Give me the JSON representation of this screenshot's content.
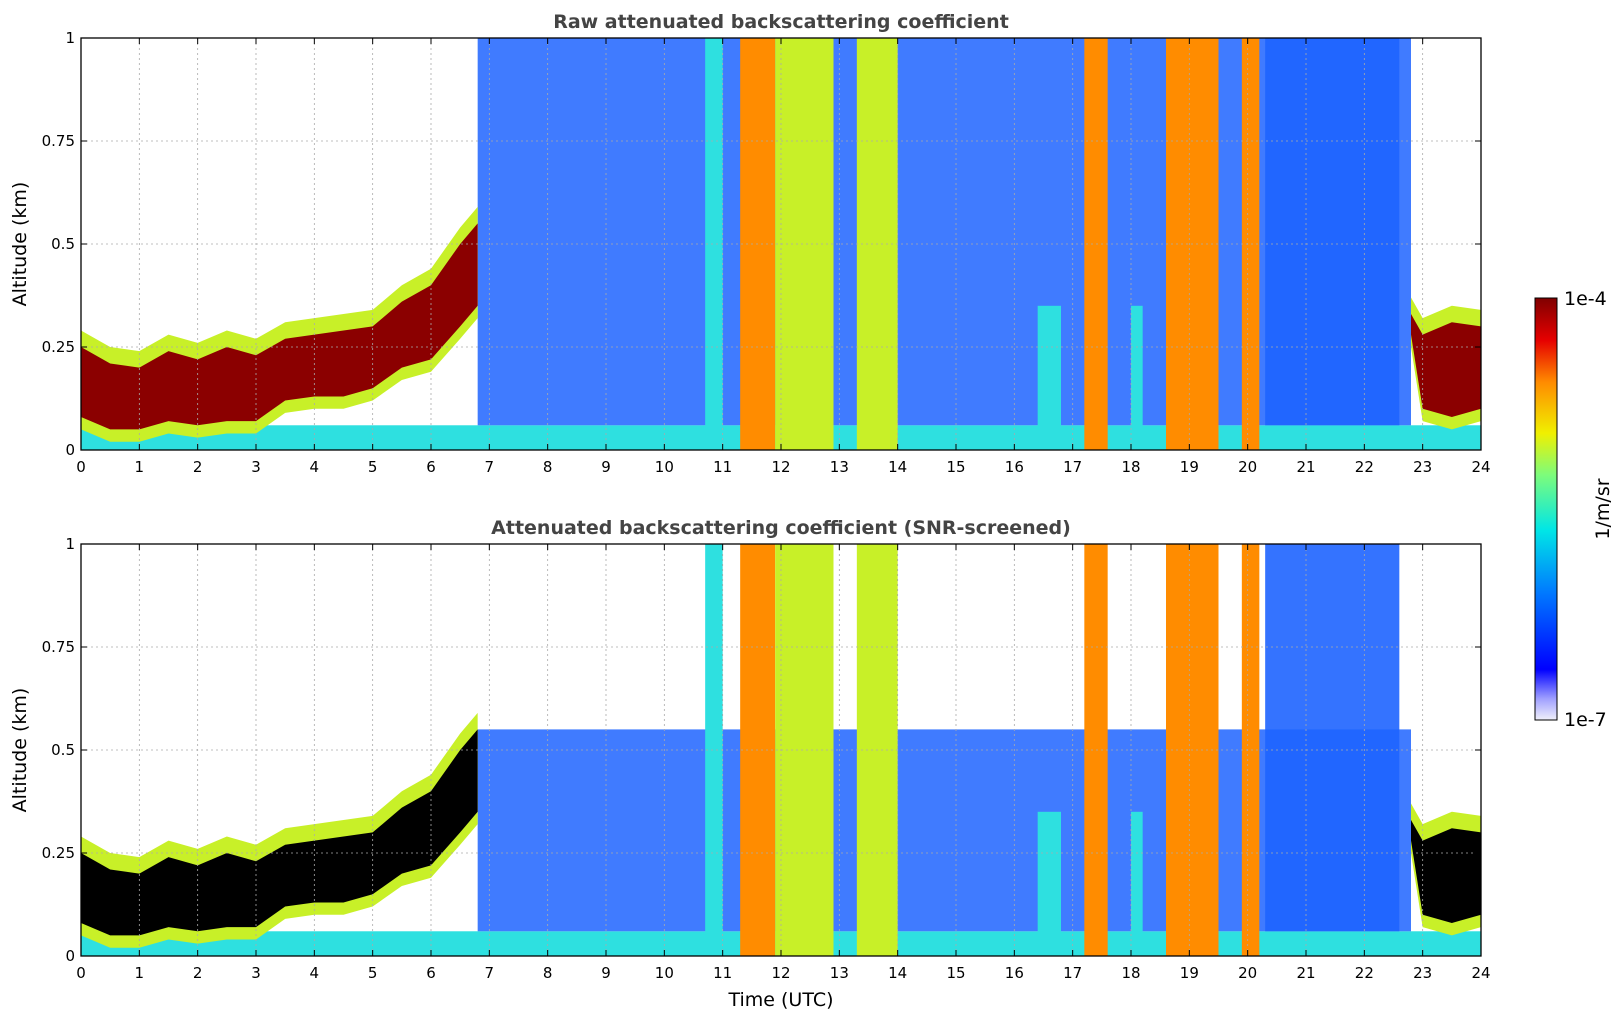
{
  "chart_data": [
    {
      "type": "heatmap",
      "title": "Raw attenuated backscattering coefficient",
      "xlabel": "",
      "ylabel": "Altitude (km)",
      "xlim": [
        0,
        24
      ],
      "ylim": [
        0,
        1
      ],
      "x_ticks": [
        "0",
        "1",
        "2",
        "3",
        "4",
        "5",
        "6",
        "7",
        "8",
        "9",
        "10",
        "11",
        "12",
        "13",
        "14",
        "15",
        "16",
        "17",
        "18",
        "19",
        "20",
        "21",
        "22",
        "23",
        "24"
      ],
      "y_ticks": [
        "0",
        "0.25",
        "0.5",
        "0.75",
        "1"
      ],
      "grid": true,
      "colorbar": {
        "label": "1/m/sr",
        "min_label": "1e-7",
        "max_label": "1e-4",
        "scale": "log"
      },
      "layer": {
        "description_x_hours": [
          0,
          0.5,
          1,
          1.5,
          2,
          2.5,
          3,
          3.5,
          4,
          4.5,
          5,
          5.5,
          6,
          6.5,
          6.8,
          22.8,
          23,
          23.5,
          24
        ],
        "top_km": [
          0.25,
          0.21,
          0.2,
          0.24,
          0.22,
          0.25,
          0.23,
          0.27,
          0.28,
          0.29,
          0.3,
          0.36,
          0.4,
          0.5,
          0.55,
          0.33,
          0.28,
          0.31,
          0.3
        ],
        "bottom_km": [
          0.08,
          0.05,
          0.05,
          0.07,
          0.06,
          0.07,
          0.07,
          0.12,
          0.13,
          0.13,
          0.15,
          0.2,
          0.22,
          0.3,
          0.35,
          0.28,
          0.1,
          0.08,
          0.1
        ],
        "color_level": "max"
      },
      "bands": [
        {
          "x": [
            10.7,
            11.0
          ],
          "level": "mid"
        },
        {
          "x": [
            11.3,
            11.9
          ],
          "level": "high"
        },
        {
          "x": [
            11.9,
            12.9
          ],
          "level": "mid-high"
        },
        {
          "x": [
            13.3,
            14.0
          ],
          "level": "mid-high"
        },
        {
          "x": [
            16.4,
            16.8
          ],
          "level": "cloud-low"
        },
        {
          "x": [
            17.2,
            17.6
          ],
          "level": "high"
        },
        {
          "x": [
            18.0,
            18.2
          ],
          "level": "cloud-low"
        },
        {
          "x": [
            18.6,
            19.5
          ],
          "level": "high"
        },
        {
          "x": [
            19.9,
            20.2
          ],
          "level": "high"
        }
      ]
    },
    {
      "type": "heatmap",
      "title": "Attenuated backscattering coefficient (SNR-screened)",
      "xlabel": "Time (UTC)",
      "ylabel": "Altitude (km)",
      "xlim": [
        0,
        24
      ],
      "ylim": [
        0,
        1
      ],
      "x_ticks": [
        "0",
        "1",
        "2",
        "3",
        "4",
        "5",
        "6",
        "7",
        "8",
        "9",
        "10",
        "11",
        "12",
        "13",
        "14",
        "15",
        "16",
        "17",
        "18",
        "19",
        "20",
        "21",
        "22",
        "23",
        "24"
      ],
      "y_ticks": [
        "0",
        "0.25",
        "0.5",
        "0.75",
        "1"
      ],
      "grid": true,
      "colorbar": {
        "label": "1/m/sr",
        "min_label": "1e-7",
        "max_label": "1e-4",
        "scale": "log"
      },
      "layer": {
        "description_x_hours": [
          0,
          0.5,
          1,
          1.5,
          2,
          2.5,
          3,
          3.5,
          4,
          4.5,
          5,
          5.5,
          6,
          6.5,
          6.8,
          22.8,
          23,
          23.5,
          24
        ],
        "top_km": [
          0.25,
          0.21,
          0.2,
          0.24,
          0.22,
          0.25,
          0.23,
          0.27,
          0.28,
          0.29,
          0.3,
          0.36,
          0.4,
          0.5,
          0.55,
          0.33,
          0.28,
          0.31,
          0.3
        ],
        "bottom_km": [
          0.08,
          0.05,
          0.05,
          0.07,
          0.06,
          0.07,
          0.07,
          0.12,
          0.13,
          0.13,
          0.15,
          0.2,
          0.22,
          0.3,
          0.35,
          0.28,
          0.1,
          0.08,
          0.1
        ],
        "color_level": "saturated"
      }
    }
  ],
  "colors": {
    "very_low": "#e8e8f8",
    "low": "#1a1aff",
    "low_mid": "#1e64ff",
    "mid": "#2ee0e0",
    "mid_high": "#c8f028",
    "high": "#ff8c00",
    "max": "#8b0000",
    "saturated": "#000000"
  }
}
